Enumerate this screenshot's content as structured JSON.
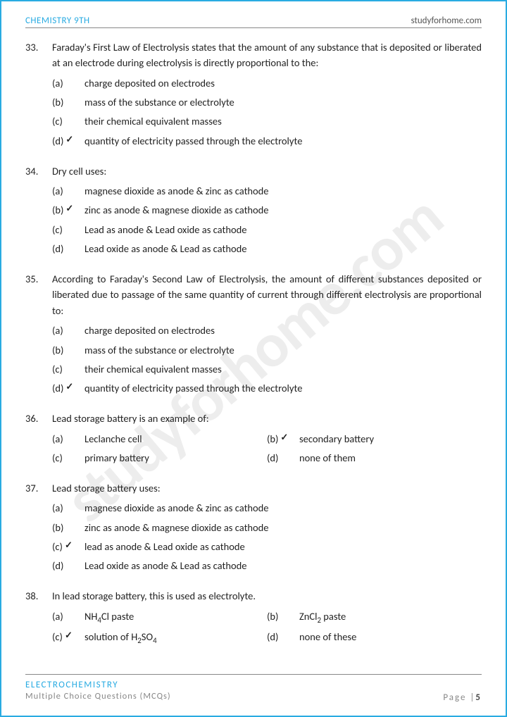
{
  "colors": {
    "accent": "#29abe2",
    "text": "#222222",
    "muted": "#888888",
    "border": "#888888",
    "watermark": "rgba(0,0,0,0.07)",
    "background": "#ffffff"
  },
  "header": {
    "left": "CHEMISTRY 9TH",
    "right": "studyforhome.com"
  },
  "watermark": "studyforhome.com",
  "footer": {
    "topic": "ELECTROCHEMISTRY",
    "subtitle": "Multiple Choice Questions (MCQs)",
    "page_label": "Page |",
    "page_num": "5"
  },
  "questions": [
    {
      "num": "33.",
      "justify": true,
      "stem": "Faraday's First Law of Electrolysis states that the amount of any substance that is deposited or liberated at an electrode during electrolysis is directly proportional to the:",
      "layout": "single",
      "options": [
        {
          "label": "(a)",
          "text": "charge deposited on electrodes",
          "correct": false
        },
        {
          "label": "(b)",
          "text": "mass of the substance or electrolyte",
          "correct": false
        },
        {
          "label": "(c)",
          "text": "their chemical equivalent masses",
          "correct": false
        },
        {
          "label": "(d)",
          "text": "quantity of electricity passed through the electrolyte",
          "correct": true
        }
      ]
    },
    {
      "num": "34.",
      "justify": false,
      "stem": "Dry cell uses:",
      "layout": "single",
      "options": [
        {
          "label": "(a)",
          "text": "magnese dioxide as anode & zinc as cathode",
          "correct": false
        },
        {
          "label": "(b)",
          "text": "zinc as anode & magnese dioxide as cathode",
          "correct": true
        },
        {
          "label": "(c)",
          "text": "Lead as anode & Lead oxide as cathode",
          "correct": false
        },
        {
          "label": "(d)",
          "text": "Lead oxide as anode & Lead as cathode",
          "correct": false
        }
      ]
    },
    {
      "num": "35.",
      "justify": true,
      "stem": "According to Faraday's Second Law of Electrolysis, the amount of different substances deposited or liberated due to passage of the same quantity of current through different electrolysis are proportional to:",
      "layout": "single",
      "options": [
        {
          "label": "(a)",
          "text": "charge deposited on electrodes",
          "correct": false
        },
        {
          "label": "(b)",
          "text": "mass of the substance or electrolyte",
          "correct": false
        },
        {
          "label": "(c)",
          "text": "their chemical equivalent masses",
          "correct": false
        },
        {
          "label": "(d)",
          "text": "quantity of electricity passed through the electrolyte",
          "correct": true
        }
      ]
    },
    {
      "num": "36.",
      "justify": false,
      "stem": "Lead storage battery is an example of:",
      "layout": "two-col",
      "options": [
        {
          "label": "(a)",
          "text": "Leclanche cell",
          "correct": false
        },
        {
          "label": "(b)",
          "text": "secondary battery",
          "correct": true
        },
        {
          "label": "(c)",
          "text": "primary battery",
          "correct": false
        },
        {
          "label": "(d)",
          "text": "none of them",
          "correct": false
        }
      ]
    },
    {
      "num": "37.",
      "justify": false,
      "stem": "Lead storage battery uses:",
      "layout": "single",
      "options": [
        {
          "label": "(a)",
          "text": "magnese dioxide as anode & zinc as cathode",
          "correct": false
        },
        {
          "label": "(b)",
          "text": "zinc as anode & magnese dioxide as cathode",
          "correct": false
        },
        {
          "label": "(c)",
          "text": "lead as anode & Lead oxide as cathode",
          "correct": true
        },
        {
          "label": "(d)",
          "text": "Lead oxide as anode & Lead as cathode",
          "correct": false
        }
      ]
    },
    {
      "num": "38.",
      "justify": false,
      "stem": "In lead storage battery, this is used as electrolyte.",
      "layout": "two-col",
      "options": [
        {
          "label": "(a)",
          "html": "NH<sub>4</sub>Cl paste",
          "correct": false
        },
        {
          "label": "(b)",
          "html": "ZnCl<sub>2</sub> paste",
          "correct": false
        },
        {
          "label": "(c)",
          "html": "solution of H<sub>2</sub>SO<sub>4</sub>",
          "correct": true
        },
        {
          "label": "(d)",
          "html": "none of these",
          "correct": false
        }
      ]
    }
  ]
}
